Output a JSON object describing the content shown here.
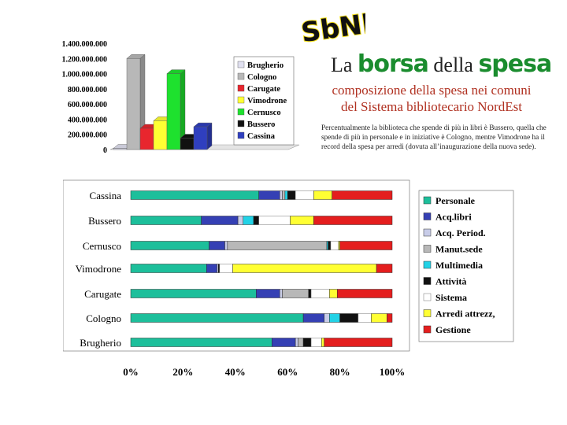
{
  "logo": {
    "text": "SbNE"
  },
  "header": {
    "title_prefix": "La",
    "title_word1": "borsa",
    "title_middle": "della",
    "title_word2": "spesa",
    "subtitle_line1": "composizione della spesa nei comuni",
    "subtitle_line2": "del Sistema bibliotecario NordEst",
    "note": "Percentualmente la biblioteca che spende di più in libri è Bussero, quella che spende di più in personale e in iniziative è Cologno, mentre Vimodrone ha il record della spesa per arredi (dovuta all’inaugurazione della nuova sede)."
  },
  "colors": {
    "title_accent": "#1a8c2e",
    "subtitle": "#b03020"
  },
  "chart_data": [
    {
      "type": "bar",
      "view": "3d",
      "categories": [
        "Brugherio",
        "Cologno",
        "Carugate",
        "Vimodrone",
        "Cernusco",
        "Bussero",
        "Cassina"
      ],
      "values": [
        15000000,
        1200000000,
        280000000,
        380000000,
        1000000000,
        150000000,
        300000000
      ],
      "colors": [
        "#e0e0f0",
        "#b8b8b8",
        "#e8262e",
        "#ffff33",
        "#1ee12e",
        "#111111",
        "#2f3fbf"
      ],
      "ylim": [
        0,
        1400000000
      ],
      "yticks": [
        "0",
        "200.000.000",
        "400.000.000",
        "600.000.000",
        "800.000.000",
        "1.000.000.000",
        "1.200.000.000",
        "1.400.000.000"
      ],
      "legend_position": "right"
    },
    {
      "type": "bar",
      "orientation": "horizontal",
      "stacked": "percent",
      "categories": [
        "Cassina",
        "Bussero",
        "Cernusco",
        "Vimodrone",
        "Carugate",
        "Cologno",
        "Brugherio"
      ],
      "series": [
        {
          "name": "Personale",
          "color": "#1dbf9b",
          "values": [
            49,
            27,
            30,
            29,
            48,
            66,
            54
          ]
        },
        {
          "name": "Acq.libri",
          "color": "#3540b4",
          "values": [
            8,
            14,
            6,
            4,
            9,
            8,
            9
          ]
        },
        {
          "name": "Acq. Period.",
          "color": "#c8cce8",
          "values": [
            1,
            2,
            1,
            0.5,
            1,
            2,
            1
          ]
        },
        {
          "name": "Manut.sede",
          "color": "#b8b8b8",
          "values": [
            1,
            0,
            38,
            0,
            10,
            0,
            2
          ]
        },
        {
          "name": "Multimedia",
          "color": "#22d2e6",
          "values": [
            1,
            4,
            0.5,
            0,
            0,
            4,
            0
          ]
        },
        {
          "name": "Attività",
          "color": "#111111",
          "values": [
            3,
            2,
            1,
            0.5,
            1,
            7,
            3
          ]
        },
        {
          "name": "Sistema",
          "color": "#ffffff",
          "values": [
            7,
            12,
            3,
            5,
            7,
            5,
            4
          ]
        },
        {
          "name": "Arredi attrezz,",
          "color": "#ffff33",
          "values": [
            7,
            9,
            0.5,
            55,
            3,
            6,
            1
          ]
        },
        {
          "name": "Gestione",
          "color": "#e41e1e",
          "values": [
            23,
            30,
            20,
            6,
            21,
            2,
            26
          ]
        }
      ],
      "xticks": [
        "0%",
        "20%",
        "40%",
        "60%",
        "80%",
        "100%"
      ],
      "xlim": [
        0,
        100
      ],
      "legend_position": "right"
    }
  ]
}
